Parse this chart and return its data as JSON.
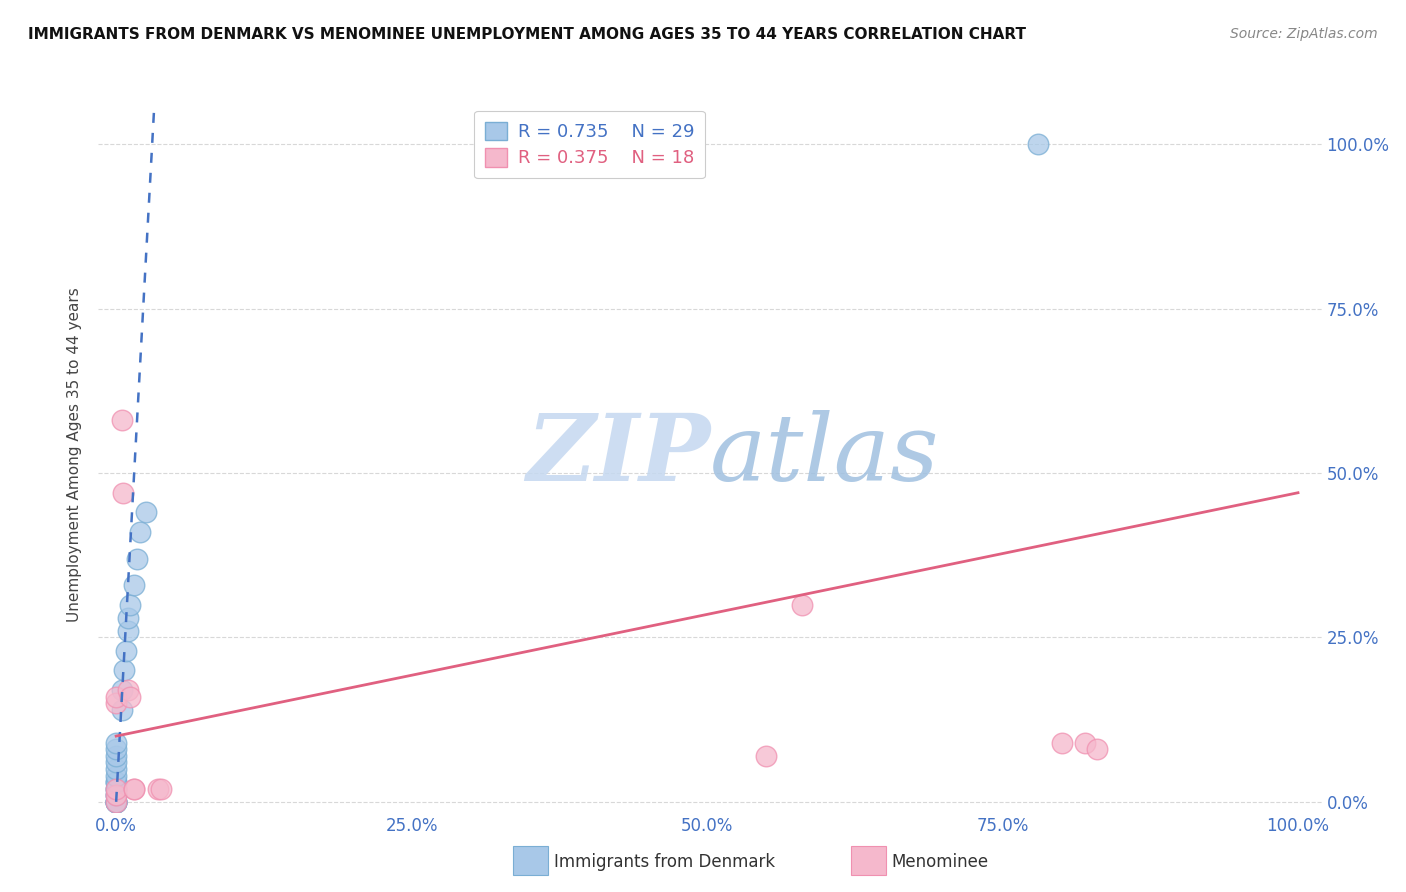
{
  "title": "IMMIGRANTS FROM DENMARK VS MENOMINEE UNEMPLOYMENT AMONG AGES 35 TO 44 YEARS CORRELATION CHART",
  "source": "Source: ZipAtlas.com",
  "ylabel": "Unemployment Among Ages 35 to 44 years",
  "blue_label": "Immigrants from Denmark",
  "pink_label": "Menominee",
  "blue_R": 0.735,
  "blue_N": 29,
  "pink_R": 0.375,
  "pink_N": 18,
  "blue_dot_color": "#a8c8e8",
  "pink_dot_color": "#f5b8cc",
  "blue_dot_edge": "#7aaed4",
  "pink_dot_edge": "#f090b0",
  "blue_line_color": "#4472c4",
  "pink_line_color": "#e06080",
  "blue_dots": [
    [
      0.0,
      0.0
    ],
    [
      0.0,
      0.0
    ],
    [
      0.0,
      0.0
    ],
    [
      0.0,
      0.0
    ],
    [
      0.0,
      0.0
    ],
    [
      0.0,
      0.01
    ],
    [
      0.0,
      0.01
    ],
    [
      0.0,
      0.02
    ],
    [
      0.0,
      0.02
    ],
    [
      0.0,
      0.03
    ],
    [
      0.0,
      0.03
    ],
    [
      0.0,
      0.04
    ],
    [
      0.0,
      0.05
    ],
    [
      0.0,
      0.06
    ],
    [
      0.0,
      0.07
    ],
    [
      0.0,
      0.08
    ],
    [
      0.0,
      0.09
    ],
    [
      0.005,
      0.14
    ],
    [
      0.005,
      0.17
    ],
    [
      0.007,
      0.2
    ],
    [
      0.008,
      0.23
    ],
    [
      0.01,
      0.26
    ],
    [
      0.01,
      0.28
    ],
    [
      0.012,
      0.3
    ],
    [
      0.015,
      0.33
    ],
    [
      0.018,
      0.37
    ],
    [
      0.02,
      0.41
    ],
    [
      0.025,
      0.44
    ],
    [
      0.78,
      1.0
    ]
  ],
  "pink_dots": [
    [
      0.0,
      0.0
    ],
    [
      0.0,
      0.01
    ],
    [
      0.0,
      0.02
    ],
    [
      0.0,
      0.15
    ],
    [
      0.0,
      0.16
    ],
    [
      0.005,
      0.58
    ],
    [
      0.006,
      0.47
    ],
    [
      0.01,
      0.17
    ],
    [
      0.012,
      0.16
    ],
    [
      0.015,
      0.02
    ],
    [
      0.015,
      0.02
    ],
    [
      0.035,
      0.02
    ],
    [
      0.038,
      0.02
    ],
    [
      0.55,
      0.07
    ],
    [
      0.58,
      0.3
    ],
    [
      0.8,
      0.09
    ],
    [
      0.82,
      0.09
    ],
    [
      0.83,
      0.08
    ]
  ],
  "blue_trend_x": [
    0.0,
    0.032
  ],
  "blue_trend_y": [
    0.0,
    1.05
  ],
  "pink_trend_x": [
    0.0,
    1.0
  ],
  "pink_trend_y": [
    0.1,
    0.47
  ],
  "xlim": [
    -0.015,
    1.02
  ],
  "ylim": [
    -0.015,
    1.07
  ],
  "x_ticks": [
    0.0,
    0.25,
    0.5,
    0.75,
    1.0
  ],
  "x_tick_labels": [
    "0.0%",
    "25.0%",
    "50.0%",
    "75.0%",
    "100.0%"
  ],
  "y_ticks": [
    0.0,
    0.25,
    0.5,
    0.75,
    1.0
  ],
  "y_tick_labels_right": [
    "0.0%",
    "25.0%",
    "50.0%",
    "75.0%",
    "100.0%"
  ],
  "watermark_zip": "ZIP",
  "watermark_atlas": "atlas",
  "background_color": "#ffffff",
  "grid_color": "#d8d8d8"
}
